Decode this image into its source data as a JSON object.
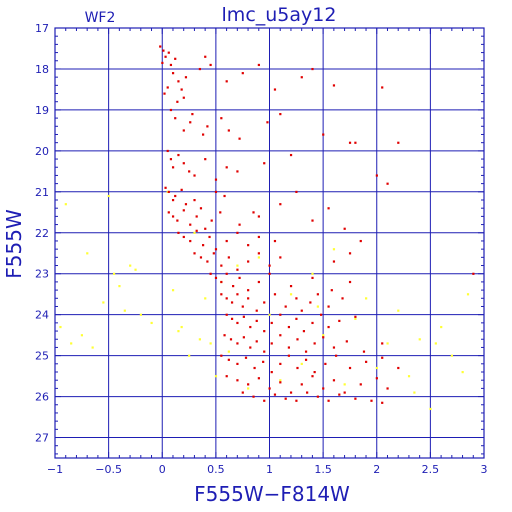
{
  "chart_data": {
    "type": "scatter",
    "title": "lmc_u5ay12",
    "chip": "WF2",
    "xlabel": "F555W−F814W",
    "ylabel": "F555W",
    "xlim": [
      -1,
      3
    ],
    "ylim": [
      27.5,
      17
    ],
    "y_inverted": true,
    "grid": true,
    "xticks": [
      -1,
      -0.5,
      0,
      0.5,
      1,
      1.5,
      2,
      2.5,
      3
    ],
    "xtick_labels": [
      "−1",
      "−0.5",
      "0",
      "0.5",
      "1",
      "1.5",
      "2",
      "2.5",
      "3"
    ],
    "yticks": [
      17,
      18,
      19,
      20,
      21,
      22,
      23,
      24,
      25,
      26,
      27
    ],
    "ytick_labels": [
      "17",
      "18",
      "19",
      "20",
      "21",
      "22",
      "23",
      "24",
      "25",
      "26",
      "27"
    ],
    "colors": {
      "axis": "#1e1eb4",
      "grid": "#1e1eb4",
      "main": "#e00000",
      "faint": "#ffff33"
    },
    "series": [
      {
        "color": "#e00000",
        "x": [
          -0.02,
          0.01,
          0.03,
          0.0,
          0.06,
          0.12,
          0.08,
          0.1,
          0.15,
          0.18,
          0.05,
          0.02,
          0.14,
          0.2,
          0.35,
          0.4,
          0.45,
          0.22,
          0.6,
          0.75,
          0.9,
          1.05,
          1.3,
          1.4,
          1.6,
          0.08,
          0.12,
          0.2,
          0.26,
          0.28,
          0.38,
          0.42,
          0.55,
          0.62,
          0.72,
          0.98,
          1.1,
          1.5,
          1.75,
          2.05,
          0.05,
          0.08,
          0.1,
          0.15,
          0.2,
          0.25,
          0.3,
          0.4,
          0.5,
          0.6,
          0.7,
          0.95,
          1.2,
          1.8,
          2.0,
          0.03,
          0.06,
          0.1,
          0.12,
          0.18,
          0.22,
          0.3,
          0.36,
          0.5,
          0.58,
          0.85,
          1.1,
          1.25,
          2.2,
          0.06,
          0.1,
          0.14,
          0.2,
          0.26,
          0.32,
          0.4,
          0.46,
          0.54,
          0.72,
          0.9,
          1.4,
          1.55,
          2.1,
          0.15,
          0.2,
          0.26,
          0.32,
          0.38,
          0.44,
          0.5,
          0.6,
          0.7,
          0.8,
          0.9,
          1.05,
          1.7,
          1.85,
          0.3,
          0.36,
          0.42,
          0.48,
          0.55,
          0.62,
          0.7,
          0.8,
          0.9,
          1.0,
          1.1,
          1.6,
          1.75,
          0.45,
          0.5,
          0.55,
          0.6,
          0.66,
          0.72,
          0.8,
          0.9,
          1.0,
          1.2,
          1.4,
          1.58,
          1.75,
          2.9,
          0.55,
          0.6,
          0.65,
          0.7,
          0.75,
          0.8,
          0.88,
          0.95,
          1.05,
          1.15,
          1.25,
          1.3,
          1.38,
          1.45,
          1.55,
          1.68,
          0.6,
          0.65,
          0.7,
          0.76,
          0.82,
          0.88,
          0.95,
          1.02,
          1.1,
          1.18,
          1.25,
          1.32,
          1.4,
          1.48,
          1.55,
          1.65,
          1.8,
          0.58,
          0.64,
          0.7,
          0.76,
          0.82,
          0.88,
          0.95,
          1.02,
          1.1,
          1.18,
          1.26,
          1.34,
          1.42,
          1.5,
          1.6,
          1.72,
          1.88,
          2.05,
          0.55,
          0.62,
          0.7,
          0.78,
          0.86,
          0.94,
          1.02,
          1.1,
          1.18,
          1.26,
          1.34,
          1.42,
          1.52,
          1.62,
          1.75,
          1.9,
          2.05,
          2.2,
          0.6,
          0.7,
          0.8,
          0.9,
          1.0,
          1.1,
          1.2,
          1.3,
          1.4,
          1.5,
          1.6,
          1.7,
          1.85,
          2.0,
          2.1,
          0.75,
          0.85,
          0.95,
          1.05,
          1.15,
          1.25,
          1.35,
          1.45,
          1.55,
          1.65,
          1.8,
          1.95,
          2.05
        ],
        "y": [
          17.45,
          17.55,
          17.7,
          17.85,
          17.6,
          17.75,
          17.9,
          18.1,
          18.3,
          18.5,
          18.45,
          18.6,
          18.8,
          18.7,
          18.0,
          17.7,
          17.9,
          18.2,
          18.3,
          18.1,
          17.9,
          18.5,
          18.2,
          18.0,
          18.4,
          19.0,
          19.2,
          19.5,
          19.3,
          19.1,
          19.6,
          19.4,
          19.2,
          19.5,
          19.7,
          19.3,
          19.1,
          19.6,
          19.8,
          18.45,
          20.0,
          20.2,
          20.4,
          20.1,
          20.3,
          20.5,
          20.6,
          20.2,
          20.7,
          20.4,
          20.5,
          20.3,
          20.1,
          19.8,
          20.6,
          20.9,
          21.0,
          21.2,
          21.1,
          20.95,
          21.3,
          21.2,
          21.4,
          21.0,
          21.1,
          21.5,
          21.3,
          21.0,
          19.8,
          21.5,
          21.6,
          21.7,
          21.45,
          21.8,
          21.6,
          21.9,
          21.7,
          21.5,
          21.8,
          21.6,
          21.7,
          21.4,
          20.8,
          22.0,
          22.1,
          22.2,
          21.95,
          22.3,
          22.1,
          22.4,
          22.2,
          22.0,
          22.3,
          22.1,
          22.2,
          21.9,
          22.2,
          22.5,
          22.6,
          22.7,
          22.5,
          22.8,
          22.6,
          22.9,
          22.7,
          22.5,
          22.8,
          22.6,
          22.7,
          22.5,
          23.0,
          23.1,
          23.2,
          23.0,
          23.3,
          23.1,
          23.4,
          23.2,
          23.0,
          23.3,
          23.1,
          23.4,
          23.2,
          23.0,
          23.5,
          23.6,
          23.7,
          23.5,
          23.8,
          23.6,
          23.9,
          23.7,
          23.5,
          23.8,
          23.6,
          23.9,
          23.7,
          23.5,
          23.8,
          23.6,
          24.0,
          24.1,
          24.2,
          24.05,
          24.3,
          24.15,
          24.4,
          24.2,
          24.0,
          24.3,
          24.1,
          24.4,
          24.2,
          24.0,
          24.3,
          24.15,
          24.05,
          24.5,
          24.6,
          24.7,
          24.55,
          24.8,
          24.65,
          24.9,
          24.7,
          24.5,
          24.8,
          24.6,
          24.9,
          24.7,
          24.55,
          24.8,
          24.65,
          24.9,
          24.7,
          25.0,
          25.1,
          25.2,
          25.05,
          25.3,
          25.15,
          25.4,
          25.2,
          25.0,
          25.3,
          25.1,
          25.4,
          25.2,
          25.0,
          25.3,
          25.15,
          25.05,
          25.3,
          25.5,
          25.6,
          25.7,
          25.55,
          25.8,
          25.65,
          25.9,
          25.7,
          25.5,
          25.8,
          25.6,
          25.9,
          25.7,
          25.55,
          25.8,
          25.9,
          26.0,
          26.1,
          25.95,
          26.05,
          26.1,
          25.9,
          26.0,
          26.1,
          25.95,
          26.05,
          26.1,
          26.15
        ]
      },
      {
        "color": "#ffff33",
        "x": [
          -0.9,
          -0.85,
          -0.7,
          -0.5,
          -0.4,
          -0.3,
          -0.2,
          -0.55,
          -0.65,
          -0.35,
          -0.25,
          -0.1,
          0.05,
          0.1,
          0.18,
          0.25,
          0.3,
          0.35,
          0.4,
          0.5,
          0.55,
          0.62,
          0.7,
          0.8,
          0.9,
          1.0,
          1.1,
          1.2,
          1.3,
          1.4,
          1.5,
          1.6,
          1.7,
          1.8,
          1.9,
          2.0,
          2.1,
          2.2,
          2.3,
          2.4,
          2.5,
          2.6,
          2.7,
          2.8,
          -0.95,
          -0.75,
          -0.45,
          0.15,
          0.45,
          1.45,
          2.35,
          2.55,
          2.85
        ],
        "y": [
          21.3,
          24.7,
          22.5,
          21.1,
          23.3,
          22.8,
          24.0,
          23.7,
          24.8,
          23.9,
          22.9,
          24.2,
          21.0,
          23.4,
          24.3,
          25.0,
          22.0,
          24.6,
          23.6,
          25.5,
          23.2,
          24.9,
          22.8,
          25.8,
          22.6,
          24.0,
          25.6,
          23.5,
          25.2,
          23.0,
          24.5,
          22.4,
          25.7,
          24.1,
          23.6,
          25.3,
          24.7,
          23.9,
          25.5,
          24.6,
          26.3,
          24.3,
          25.0,
          25.4,
          24.3,
          24.5,
          23.0,
          24.4,
          24.7,
          23.8,
          25.9,
          24.7,
          23.5
        ]
      }
    ]
  }
}
